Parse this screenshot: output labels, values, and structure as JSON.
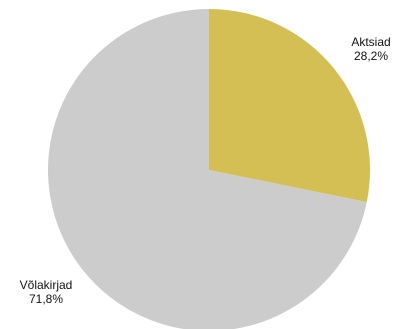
{
  "chart_data": {
    "type": "pie",
    "title": "",
    "slices": [
      {
        "label": "Aktsiad",
        "value": 28.2,
        "value_label": "28,2%",
        "color": "#d4bf55"
      },
      {
        "label": "Võlakirjad",
        "value": 71.8,
        "value_label": "71,8%",
        "color": "#cccccc"
      }
    ],
    "start_angle_deg": 0,
    "direction": "clockwise",
    "legend": "none",
    "grid": false
  }
}
